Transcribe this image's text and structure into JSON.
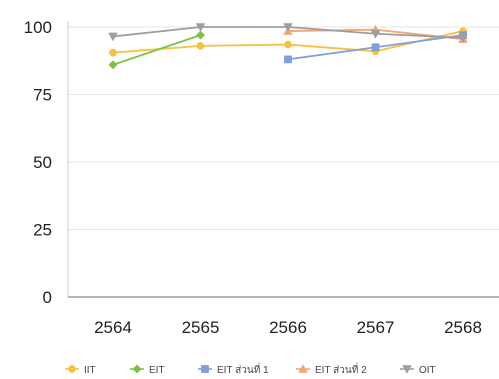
{
  "chart_data": {
    "type": "line",
    "title": "",
    "xlabel": "",
    "ylabel": "",
    "categories": [
      "2564",
      "2565",
      "2566",
      "2567",
      "2568"
    ],
    "ylim": [
      0,
      100
    ],
    "yticks": [
      0,
      25,
      50,
      75,
      100
    ],
    "grid": true,
    "legend_position": "bottom",
    "series": [
      {
        "name": "IIT",
        "color": "#F5C242",
        "marker": "circle",
        "values": [
          90.5,
          93,
          93.5,
          91,
          98.5
        ]
      },
      {
        "name": "EIT",
        "color": "#7CC242",
        "marker": "diamond",
        "values": [
          86,
          97,
          null,
          null,
          null
        ]
      },
      {
        "name": "EIT ส่วนที่ 1",
        "color": "#7F9FD8",
        "marker": "square",
        "values": [
          null,
          null,
          88,
          92.5,
          97
        ]
      },
      {
        "name": "EIT ส่วนที่ 2",
        "color": "#F2A57A",
        "marker": "triangle",
        "values": [
          null,
          null,
          98.5,
          99,
          95.5
        ]
      },
      {
        "name": "OIT",
        "color": "#9E9E9E",
        "marker": "triangle-down",
        "values": [
          96.5,
          100,
          100,
          97.5,
          96
        ]
      }
    ]
  }
}
